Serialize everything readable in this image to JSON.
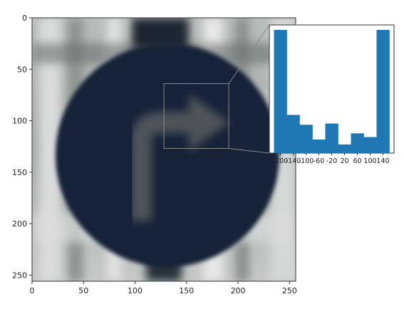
{
  "chart_data": [
    {
      "type": "image",
      "xlim": [
        0,
        256
      ],
      "ylim": [
        256,
        0
      ],
      "x_ticks": [
        "0",
        "50",
        "100",
        "150",
        "200",
        "250"
      ],
      "y_ticks": [
        "0",
        "50",
        "100",
        "150",
        "200",
        "250"
      ],
      "image_content": "blurred blue road sign with white right-turn arrow",
      "zoom_region": {
        "x_range": [
          128,
          191
        ],
        "y_range": [
          64,
          127
        ]
      }
    },
    {
      "type": "bar",
      "x_ticks": [
        "-100",
        "-140",
        "-100",
        "-60",
        "-20",
        "20",
        "60",
        "100",
        "140"
      ],
      "values": [
        100,
        31,
        23,
        11,
        24,
        7,
        16,
        13,
        100
      ],
      "bar_color": "#1f77b4"
    }
  ],
  "colors": {
    "sign_fill": "#162337",
    "histogram_bar": "#1f77b4"
  }
}
